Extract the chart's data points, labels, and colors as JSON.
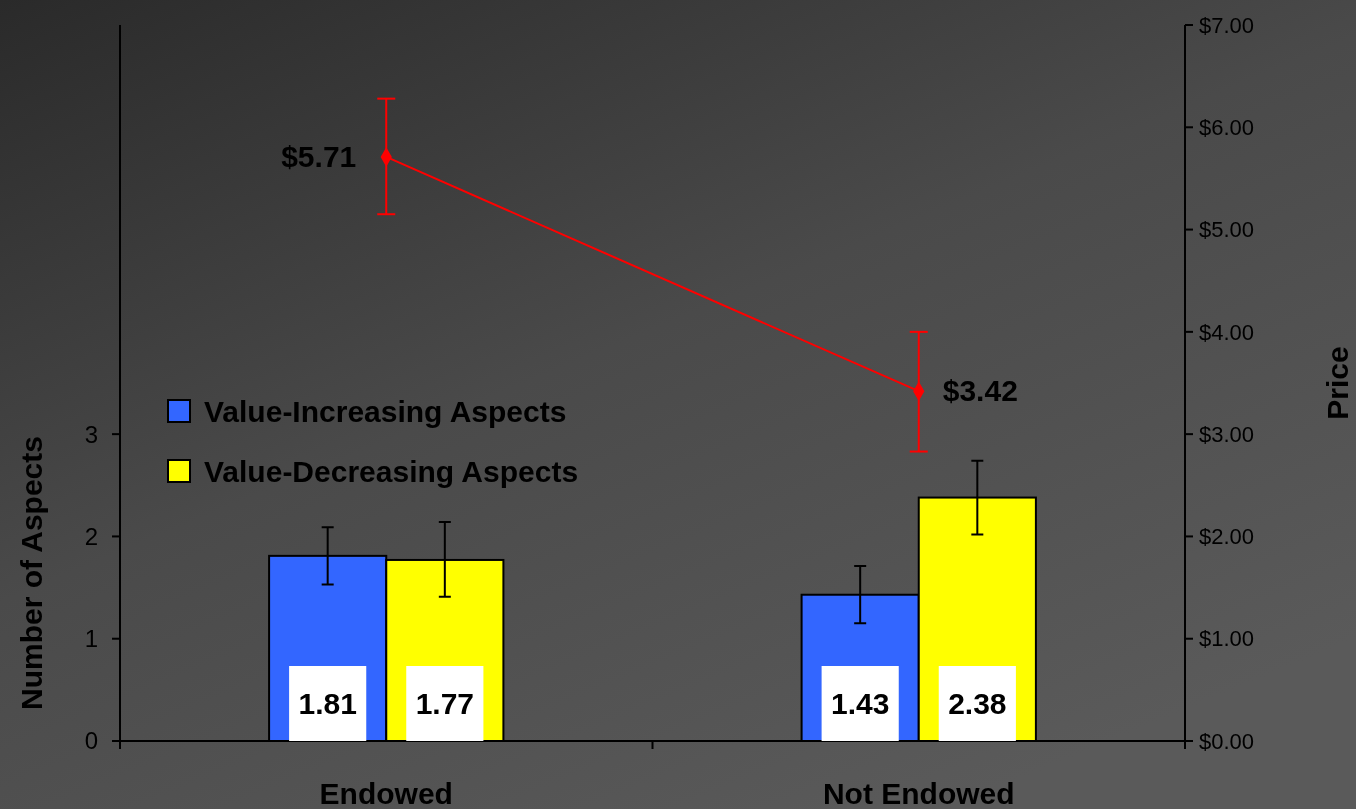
{
  "chart_data": {
    "type": "bar",
    "categories": [
      "Endowed",
      "Not Endowed"
    ],
    "ylabel": "Number of Aspects",
    "y2label": "Price",
    "ylim": [
      0,
      7
    ],
    "yticks": [
      0,
      1,
      2,
      3
    ],
    "y2lim": [
      0,
      7
    ],
    "y2ticks": [
      {
        "value": 0,
        "label": "$0.00"
      },
      {
        "value": 1,
        "label": "$1.00"
      },
      {
        "value": 2,
        "label": "$2.00"
      },
      {
        "value": 3,
        "label": "$3.00"
      },
      {
        "value": 4,
        "label": "$4.00"
      },
      {
        "value": 5,
        "label": "$5.00"
      },
      {
        "value": 6,
        "label": "$6.00"
      },
      {
        "value": 7,
        "label": "$7.00"
      }
    ],
    "legend": "left",
    "grid": false,
    "series": [
      {
        "name": "Value-Increasing Aspects",
        "color": "#3366ff",
        "values": [
          1.81,
          1.43
        ],
        "errors": [
          [
            1.53,
            2.09
          ],
          [
            1.15,
            1.71
          ]
        ],
        "value_labels": [
          "1.81",
          "1.43"
        ]
      },
      {
        "name": "Value-Decreasing Aspects",
        "color": "#ffff00",
        "values": [
          1.77,
          2.38
        ],
        "errors": [
          [
            1.41,
            2.14
          ],
          [
            2.02,
            2.74
          ]
        ],
        "value_labels": [
          "1.77",
          "2.38"
        ]
      },
      {
        "type": "line",
        "color": "#ff0000",
        "marker": "diamond",
        "values": [
          5.71,
          3.42
        ],
        "errors": [
          [
            5.15,
            6.28
          ],
          [
            2.83,
            4.0
          ]
        ],
        "value_labels": [
          "$5.71",
          "$3.42"
        ]
      }
    ]
  }
}
